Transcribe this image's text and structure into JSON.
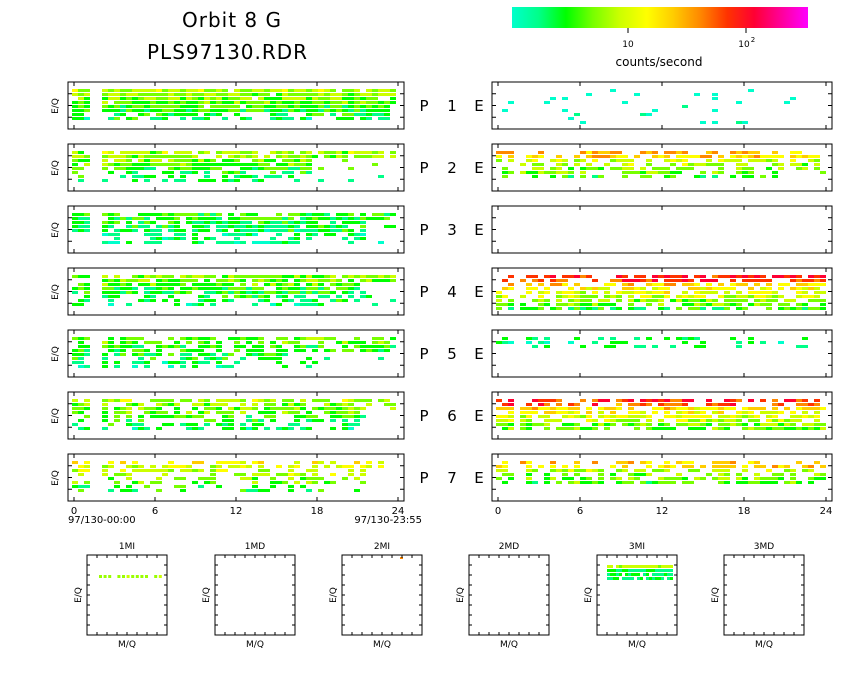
{
  "header": {
    "title": "Orbit 8 G",
    "file": "PLS97130.RDR"
  },
  "colorbar": {
    "gradient": [
      "#00ffcc",
      "#00ff88",
      "#00ff00",
      "#77ff00",
      "#ccff00",
      "#ffff00",
      "#ffcc00",
      "#ff8800",
      "#ff3300",
      "#ff0033",
      "#ff0099",
      "#ff00ff"
    ],
    "tick_10": "10",
    "tick_100_base": "10",
    "tick_100_exp": "2",
    "label": "counts/second"
  },
  "chart_data": {
    "type": "heatmap",
    "x_axis": {
      "ticks": [
        "0",
        "6",
        "12",
        "18",
        "24"
      ],
      "range": [
        0,
        24
      ],
      "start_label": "97/130-00:00",
      "end_label": "97/130-23:55"
    },
    "ylabel": "E/Q",
    "colormap": "cyan-green-yellow-red-magenta, log scale",
    "rows": [
      {
        "label": "P",
        "num": "1",
        "e": "E",
        "left": {
          "g": 4,
          "top": 0.04,
          "bot": 0.84,
          "fill": 0.95,
          "holes": [
            [
              0.0,
              0.32,
              0.97
            ]
          ]
        },
        "right": {
          "g": 0,
          "top": 0.08,
          "bot": 0.92,
          "fill": 0.05
        }
      },
      {
        "label": "P",
        "num": "2",
        "e": "E",
        "left": {
          "g": 3.8,
          "top": 0.04,
          "bot": 0.86,
          "fill": 0.8,
          "holes": [
            [
              0.0,
              0.46,
              0.73
            ]
          ]
        },
        "right": {
          "g": 5.2,
          "top": 0.04,
          "bot": 0.75,
          "fill": 0.55,
          "holes": [
            [
              0.7,
              0.2,
              0.85
            ]
          ]
        }
      },
      {
        "label": "P",
        "num": "3",
        "e": "E",
        "left": {
          "g": 2.4,
          "top": 0.04,
          "bot": 0.86,
          "fill": 0.8,
          "holes": [
            [
              0.0,
              0.46,
              0.9
            ]
          ]
        },
        "right": {
          "g": 0,
          "top": 0.2,
          "bot": 0.8,
          "fill": 0.0
        }
      },
      {
        "label": "P",
        "num": "4",
        "e": "E",
        "left": {
          "g": 3.4,
          "top": 0.04,
          "bot": 0.86,
          "fill": 0.8,
          "holes": [
            [
              0.0,
              0.46,
              0.9
            ]
          ]
        },
        "right": {
          "g": 7.5,
          "top": 0.04,
          "bot": 0.96,
          "fill": 0.7
        }
      },
      {
        "label": "P",
        "num": "5",
        "e": "E",
        "left": {
          "g": 3.2,
          "top": 0.04,
          "bot": 0.86,
          "fill": 0.6,
          "holes": [
            [
              0.35,
              0.33,
              0.68
            ]
          ]
        },
        "right": {
          "g": 1.5,
          "top": 0.08,
          "bot": 0.36,
          "fill": 0.3
        }
      },
      {
        "label": "P",
        "num": "6",
        "e": "E",
        "left": {
          "g": 4,
          "top": 0.04,
          "bot": 0.86,
          "fill": 0.75,
          "holes": [
            [
              0.0,
              0.46,
              0.9
            ]
          ]
        },
        "right": {
          "g": 7.2,
          "top": 0.04,
          "bot": 0.8,
          "fill": 0.7
        }
      },
      {
        "label": "P",
        "num": "7",
        "e": "E",
        "left": {
          "g": 5.2,
          "top": 0.04,
          "bot": 0.86,
          "fill": 0.55,
          "holes": [
            [
              0.0,
              0.46,
              0.9
            ]
          ]
        },
        "right": {
          "g": 4.8,
          "top": 0.04,
          "bot": 0.66,
          "fill": 0.55,
          "holes": [
            [
              0.55,
              0.0,
              0.67
            ]
          ]
        }
      }
    ],
    "small_panels": [
      {
        "title": "1MI",
        "xlabel": "M/Q",
        "ylabel": "E/Q",
        "blob": 1
      },
      {
        "title": "1MD",
        "xlabel": "M/Q",
        "ylabel": "E/Q",
        "blob": 0
      },
      {
        "title": "2MI",
        "xlabel": "M/Q",
        "ylabel": "E/Q",
        "blob": 2
      },
      {
        "title": "2MD",
        "xlabel": "M/Q",
        "ylabel": "E/Q",
        "blob": 0
      },
      {
        "title": "3MI",
        "xlabel": "M/Q",
        "ylabel": "E/Q",
        "blob": 3
      },
      {
        "title": "3MD",
        "xlabel": "M/Q",
        "ylabel": "E/Q",
        "blob": 0
      }
    ]
  }
}
